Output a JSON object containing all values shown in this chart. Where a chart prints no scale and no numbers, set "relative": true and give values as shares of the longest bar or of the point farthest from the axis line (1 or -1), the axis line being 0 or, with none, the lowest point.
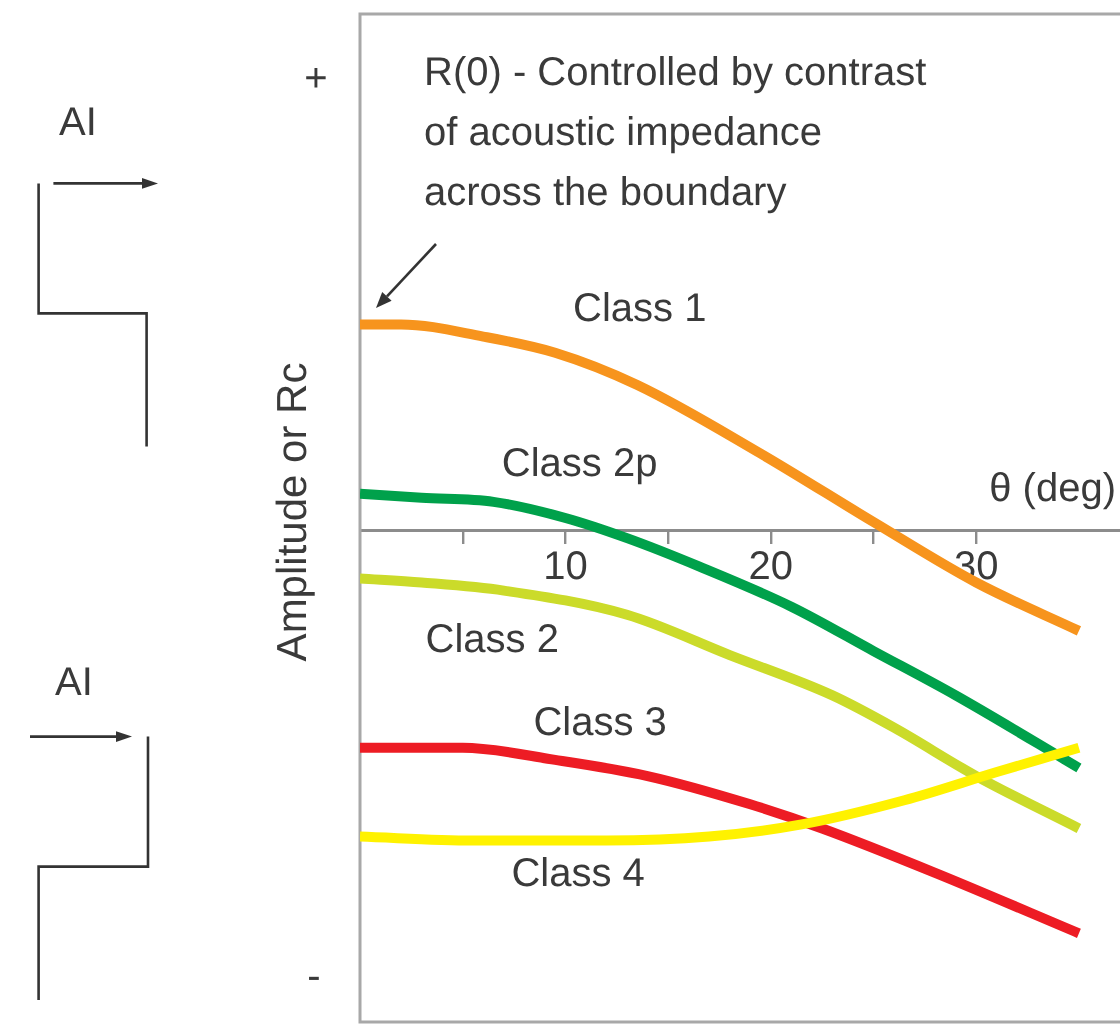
{
  "chart_data": {
    "type": "line",
    "relative": true,
    "xlabel": "θ (deg)",
    "ylabel": "Amplitude or Rc",
    "xlim": [
      0,
      37
    ],
    "xticks": [
      {
        "value": 5,
        "label": null
      },
      10,
      {
        "value": 15,
        "label": null
      },
      20,
      {
        "value": 25,
        "label": null
      },
      30
    ],
    "annotations": [
      "+",
      "-",
      "AI",
      "AI",
      "R(0) - Controlled by contrast\nof acoustic impedance\nacross the boundary"
    ],
    "series": [
      {
        "name": "Class 1",
        "color": "#f7941d",
        "x": [
          0,
          2,
          6,
          9.5,
          13.5,
          19.5,
          25,
          30,
          35
        ],
        "values": [
          0.51,
          0.51,
          0.48,
          0.44,
          0.36,
          0.19,
          0.02,
          -0.13,
          -0.25
        ]
      },
      {
        "name": "Class 2p",
        "color": "#00a14b",
        "x": [
          0,
          3,
          6.5,
          10,
          13,
          16.5,
          21,
          25,
          29,
          35
        ],
        "values": [
          0.09,
          0.08,
          0.07,
          0.03,
          -0.02,
          -0.09,
          -0.19,
          -0.3,
          -0.41,
          -0.59
        ]
      },
      {
        "name": "Class 2",
        "color": "#cbdb2a",
        "x": [
          0,
          3,
          7,
          13,
          18,
          23,
          26,
          30,
          35
        ],
        "values": [
          -0.12,
          -0.13,
          -0.15,
          -0.21,
          -0.31,
          -0.41,
          -0.49,
          -0.61,
          -0.74
        ]
      },
      {
        "name": "Class 3",
        "color": "#ed1c24",
        "x": [
          0,
          5,
          9.5,
          14,
          19,
          22.5,
          28,
          35
        ],
        "values": [
          -0.54,
          -0.54,
          -0.57,
          -0.61,
          -0.68,
          -0.74,
          -0.85,
          -1
        ]
      },
      {
        "name": "Class 4",
        "color": "#fff200",
        "x": [
          0,
          5.5,
          12,
          17,
          21.5,
          26.5,
          31,
          35
        ],
        "values": [
          -0.76,
          -0.77,
          -0.77,
          -0.76,
          -0.73,
          -0.67,
          -0.6,
          -0.54
        ]
      }
    ]
  }
}
